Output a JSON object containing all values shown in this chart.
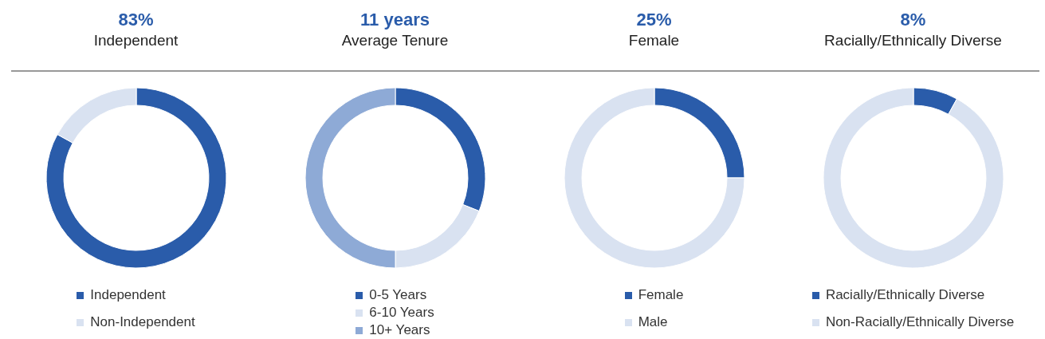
{
  "chart_data": [
    {
      "type": "donut",
      "title": "83%",
      "subtitle": "Independent",
      "categories": [
        "Independent",
        "Non-Independent"
      ],
      "values": [
        83,
        17
      ],
      "colors": [
        "#2a5caa",
        "#d9e2f1"
      ],
      "legend": "bottom"
    },
    {
      "type": "donut",
      "title": "11 years",
      "subtitle": "Average Tenure",
      "categories": [
        "0-5 Years",
        "6-10 Years",
        "10+ Years"
      ],
      "values": [
        31,
        19,
        50
      ],
      "colors": [
        "#2a5caa",
        "#d9e2f1",
        "#8eaad6"
      ],
      "legend": "bottom"
    },
    {
      "type": "donut",
      "title": "25%",
      "subtitle": "Female",
      "categories": [
        "Female",
        "Male"
      ],
      "values": [
        25,
        75
      ],
      "colors": [
        "#2a5caa",
        "#d9e2f1"
      ],
      "legend": "bottom"
    },
    {
      "type": "donut",
      "title": "8%",
      "subtitle": "Racially/Ethnically Diverse",
      "categories": [
        "Racially/Ethnically Diverse",
        "Non-Racially/Ethnically Diverse"
      ],
      "values": [
        8,
        92
      ],
      "colors": [
        "#2a5caa",
        "#d9e2f1"
      ],
      "legend": "bottom"
    }
  ]
}
